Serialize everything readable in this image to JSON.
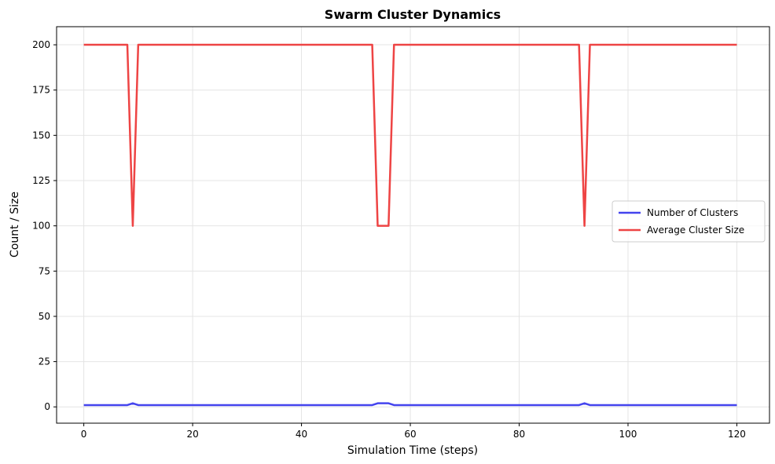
{
  "chart_data": {
    "type": "line",
    "title": "Swarm Cluster Dynamics",
    "xlabel": "Simulation Time (steps)",
    "ylabel": "Count / Size",
    "xlim": [
      -5,
      126
    ],
    "ylim": [
      -9,
      210
    ],
    "x_ticks": [
      0,
      20,
      40,
      60,
      80,
      100,
      120
    ],
    "y_ticks": [
      0,
      25,
      50,
      75,
      100,
      125,
      150,
      175,
      200
    ],
    "grid": true,
    "legend_position": "center-right",
    "series": [
      {
        "name": "Number of Clusters",
        "color": "#4444ee",
        "points": [
          [
            0,
            1
          ],
          [
            8,
            1
          ],
          [
            9,
            2
          ],
          [
            10,
            1
          ],
          [
            53,
            1
          ],
          [
            54,
            2
          ],
          [
            56,
            2
          ],
          [
            57,
            1
          ],
          [
            91,
            1
          ],
          [
            92,
            2
          ],
          [
            93,
            1
          ],
          [
            120,
            1
          ]
        ]
      },
      {
        "name": "Average Cluster Size",
        "color": "#ee4444",
        "points": [
          [
            0,
            200
          ],
          [
            8,
            200
          ],
          [
            9,
            100
          ],
          [
            10,
            200
          ],
          [
            53,
            200
          ],
          [
            54,
            100
          ],
          [
            56,
            100
          ],
          [
            57,
            200
          ],
          [
            91,
            200
          ],
          [
            92,
            100
          ],
          [
            93,
            200
          ],
          [
            120,
            200
          ]
        ]
      }
    ]
  }
}
